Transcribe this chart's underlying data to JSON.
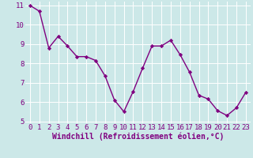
{
  "x": [
    0,
    1,
    2,
    3,
    4,
    5,
    6,
    7,
    8,
    9,
    10,
    11,
    12,
    13,
    14,
    15,
    16,
    17,
    18,
    19,
    20,
    21,
    22,
    23
  ],
  "y": [
    11.0,
    10.7,
    8.8,
    9.4,
    8.9,
    8.35,
    8.35,
    8.15,
    7.35,
    6.1,
    5.5,
    6.55,
    7.75,
    8.9,
    8.9,
    9.2,
    8.45,
    7.55,
    6.35,
    6.15,
    5.55,
    5.3,
    5.7,
    6.5
  ],
  "line_color": "#800080",
  "marker": "D",
  "marker_size": 2.2,
  "bg_color": "#cce8e8",
  "grid_color": "#ffffff",
  "xlabel": "Windchill (Refroidissement éolien,°C)",
  "xlabel_color": "#800080",
  "tick_color": "#800080",
  "ylim": [
    4.9,
    11.2
  ],
  "xlim": [
    -0.5,
    23.5
  ],
  "yticks": [
    5,
    6,
    7,
    8,
    9,
    10,
    11
  ],
  "xticks": [
    0,
    1,
    2,
    3,
    4,
    5,
    6,
    7,
    8,
    9,
    10,
    11,
    12,
    13,
    14,
    15,
    16,
    17,
    18,
    19,
    20,
    21,
    22,
    23
  ],
  "line_width": 1.0,
  "font_size": 6.5,
  "xlabel_fontsize": 7.0,
  "xlabel_fontweight": "bold"
}
